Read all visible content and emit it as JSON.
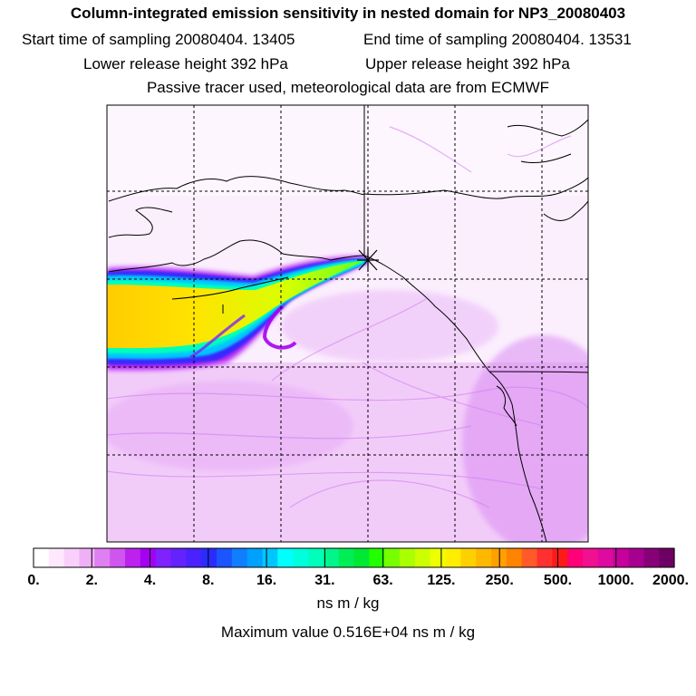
{
  "chart_data": {
    "type": "heatmap",
    "title": "Column-integrated emission sensitivity in nested domain for NP3_20080403",
    "header": {
      "start_label": "Start time of sampling 20080404. 13405",
      "end_label": "End time of sampling 20080404. 13531",
      "lower_label": "Lower release height  392 hPa",
      "upper_label": "Upper release height  392 hPa",
      "tracer_label": "Passive tracer used, meteorological data are from ECMWF"
    },
    "colorbar": {
      "tick_labels": [
        "0.",
        "2.",
        "4.",
        "8.",
        "16.",
        "31.",
        "63.",
        "125.",
        "250.",
        "500.",
        "1000.",
        "2000."
      ],
      "colors": [
        "#ffffff",
        "#fde8fd",
        "#f9d0fb",
        "#f0b0f7",
        "#df7ff2",
        "#cf55ef",
        "#bb22ee",
        "#a400f2",
        "#7f22ff",
        "#6422ff",
        "#4a22ff",
        "#2a2cff",
        "#1b55ff",
        "#0f7fff",
        "#00a0ff",
        "#00c6ff",
        "#00ffff",
        "#00ffdd",
        "#00ffbb",
        "#00f58a",
        "#00ee55",
        "#00e833",
        "#22ff00",
        "#77ff00",
        "#aaff00",
        "#ccff00",
        "#eeff00",
        "#ffee00",
        "#ffd000",
        "#ffb800",
        "#ffa000",
        "#ff8400",
        "#ff5a28",
        "#ff3030",
        "#ff1a1a",
        "#ff0077",
        "#f01090",
        "#df0a9f",
        "#c5009c",
        "#a70090",
        "#880078",
        "#6d0064"
      ],
      "unit": "ns m / kg",
      "max_value_label": "Maximum value  0.516E+04 ns m / kg"
    }
  }
}
